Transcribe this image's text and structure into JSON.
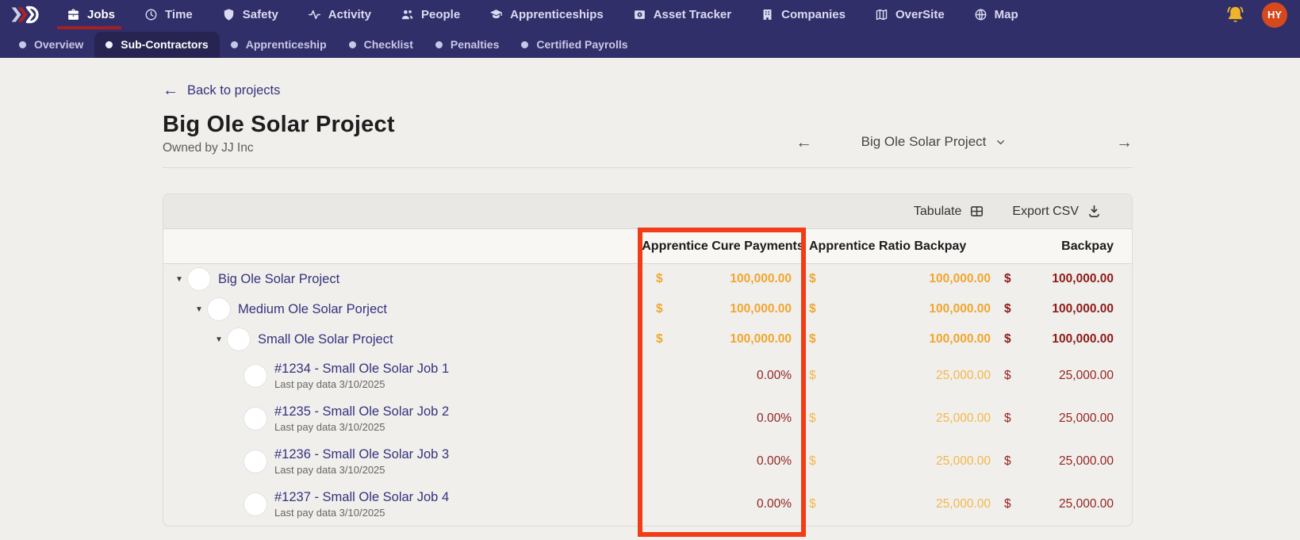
{
  "nav": {
    "items": [
      {
        "label": "Jobs",
        "icon": "briefcase-icon",
        "active": true
      },
      {
        "label": "Time",
        "icon": "clock-icon",
        "active": false
      },
      {
        "label": "Safety",
        "icon": "shield-icon",
        "active": false
      },
      {
        "label": "Activity",
        "icon": "activity-icon",
        "active": false
      },
      {
        "label": "People",
        "icon": "people-icon",
        "active": false
      },
      {
        "label": "Apprenticeships",
        "icon": "graduation-cap-icon",
        "active": false
      },
      {
        "label": "Asset Tracker",
        "icon": "asset-tracker-icon",
        "active": false
      },
      {
        "label": "Companies",
        "icon": "building-icon",
        "active": false
      },
      {
        "label": "OverSite",
        "icon": "map-icon",
        "active": false
      },
      {
        "label": "Map",
        "icon": "globe-icon",
        "active": false
      }
    ],
    "notification_icon": "bell-icon",
    "avatar_initials": "HY"
  },
  "subnav": {
    "items": [
      {
        "label": "Overview",
        "active": false
      },
      {
        "label": "Sub-Contractors",
        "active": true
      },
      {
        "label": "Apprenticeship",
        "active": false
      },
      {
        "label": "Checklist",
        "active": false
      },
      {
        "label": "Penalties",
        "active": false
      },
      {
        "label": "Certified Payrolls",
        "active": false
      }
    ]
  },
  "header": {
    "back_link": "Back to projects",
    "title": "Big Ole Solar Project",
    "subtitle": "Owned by JJ Inc",
    "project_switcher": {
      "current": "Big Ole Solar Project"
    }
  },
  "toolbar": {
    "tabulate_label": "Tabulate",
    "export_label": "Export CSV"
  },
  "table": {
    "columns": [
      "Apprentice Cure Payments",
      "Apprentice Ratio Backpay",
      "Backpay"
    ],
    "rows": [
      {
        "type": "project",
        "level": 0,
        "name": "Big Ole Solar Project",
        "cure": {
          "currency": "$",
          "value": "100,000.00"
        },
        "ratio": {
          "currency": "$",
          "value": "100,000.00"
        },
        "backpay": {
          "currency": "$",
          "value": "100,000.00"
        }
      },
      {
        "type": "project",
        "level": 1,
        "name": "Medium Ole Solar Porject",
        "cure": {
          "currency": "$",
          "value": "100,000.00"
        },
        "ratio": {
          "currency": "$",
          "value": "100,000.00"
        },
        "backpay": {
          "currency": "$",
          "value": "100,000.00"
        }
      },
      {
        "type": "project",
        "level": 2,
        "name": "Small Ole Solar Project",
        "cure": {
          "currency": "$",
          "value": "100,000.00"
        },
        "ratio": {
          "currency": "$",
          "value": "100,000.00"
        },
        "backpay": {
          "currency": "$",
          "value": "100,000.00"
        }
      },
      {
        "type": "job",
        "level": 3,
        "name": "#1234 - Small Ole Solar Job 1",
        "note": "Last pay data 3/10/2025",
        "cure": {
          "value": "0.00%"
        },
        "ratio": {
          "currency": "$",
          "value": "25,000.00"
        },
        "backpay": {
          "currency": "$",
          "value": "25,000.00"
        }
      },
      {
        "type": "job",
        "level": 3,
        "name": "#1235 - Small Ole Solar Job 2",
        "note": "Last pay data 3/10/2025",
        "cure": {
          "value": "0.00%"
        },
        "ratio": {
          "currency": "$",
          "value": "25,000.00"
        },
        "backpay": {
          "currency": "$",
          "value": "25,000.00"
        }
      },
      {
        "type": "job",
        "level": 3,
        "name": "#1236 - Small Ole Solar Job 3",
        "note": "Last pay data 3/10/2025",
        "cure": {
          "value": "0.00%"
        },
        "ratio": {
          "currency": "$",
          "value": "25,000.00"
        },
        "backpay": {
          "currency": "$",
          "value": "25,000.00"
        }
      },
      {
        "type": "job",
        "level": 3,
        "name": "#1237 - Small Ole Solar Job 4",
        "note": "Last pay data 3/10/2025",
        "cure": {
          "value": "0.00%"
        },
        "ratio": {
          "currency": "$",
          "value": "25,000.00"
        },
        "backpay": {
          "currency": "$",
          "value": "25,000.00"
        }
      }
    ]
  },
  "annotation": {
    "highlighted_column": "Apprentice Cure Payments"
  },
  "colors": {
    "navbar": "#312f69",
    "pill": "#272451",
    "underline": "#a32125",
    "page_bg": "#f0efec",
    "toolbar_bg": "#e9e8e4",
    "header_bg": "#f8f7f4",
    "border": "#dcdbd7",
    "indigo": "#35327d",
    "amber": "#f0a62f",
    "amber_light": "#f5b74a",
    "maroon": "#8e1b18",
    "maroon_light": "#952420",
    "hl": "#f23c17",
    "bell": "#f0b429",
    "avatar": "#d5491d"
  }
}
